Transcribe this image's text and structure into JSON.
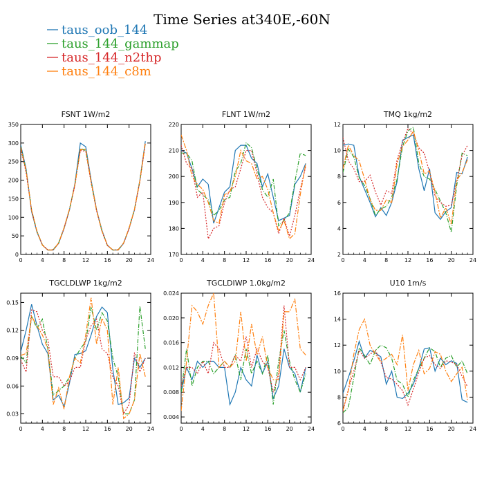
{
  "title": "Time Series at340E,-60N",
  "legend": [
    {
      "name": "taus_oob_144",
      "color": "#1f77b4"
    },
    {
      "name": "taus_144_gammap",
      "color": "#2ca02c"
    },
    {
      "name": "taus_144_n2thp",
      "color": "#d62728"
    },
    {
      "name": "taus_144_c8m",
      "color": "#ff7f0e"
    }
  ],
  "chart_data": [
    {
      "type": "line",
      "title": "FSNT 1W/m2",
      "xlim": [
        0,
        24
      ],
      "ylim": [
        0,
        350
      ],
      "xticks": [
        0,
        4,
        8,
        12,
        16,
        20,
        24
      ],
      "yticks": [
        0,
        50,
        100,
        150,
        200,
        250,
        300,
        350
      ],
      "ytick_labels": [
        "0",
        "50",
        "100",
        "150",
        "200",
        "250",
        "300",
        "350"
      ],
      "x": [
        0,
        1,
        2,
        3,
        4,
        5,
        6,
        7,
        8,
        9,
        10,
        11,
        12,
        13,
        14,
        15,
        16,
        17,
        18,
        19,
        20,
        21,
        22,
        23
      ],
      "series": [
        {
          "name": "taus_oob_144",
          "values": [
            295,
            230,
            115,
            60,
            25,
            12,
            12,
            30,
            70,
            120,
            190,
            300,
            290,
            200,
            120,
            65,
            25,
            12,
            12,
            30,
            70,
            120,
            200,
            305
          ]
        },
        {
          "name": "taus_144_gammap",
          "values": [
            290,
            225,
            120,
            62,
            26,
            12,
            13,
            31,
            72,
            122,
            188,
            285,
            280,
            195,
            118,
            63,
            24,
            12,
            13,
            31,
            71,
            122,
            198,
            300
          ]
        },
        {
          "name": "taus_144_n2thp",
          "values": [
            285,
            220,
            118,
            61,
            26,
            12,
            13,
            30,
            71,
            121,
            186,
            280,
            278,
            193,
            117,
            62,
            24,
            12,
            13,
            30,
            70,
            120,
            196,
            298
          ]
        },
        {
          "name": "taus_144_c8m",
          "values": [
            288,
            226,
            119,
            62,
            25,
            12,
            12,
            31,
            72,
            122,
            187,
            282,
            283,
            196,
            119,
            63,
            25,
            12,
            12,
            31,
            71,
            121,
            199,
            302
          ]
        }
      ]
    },
    {
      "type": "line",
      "title": "FLNT 1W/m2",
      "xlim": [
        0,
        24
      ],
      "ylim": [
        170,
        220
      ],
      "xticks": [
        0,
        4,
        8,
        12,
        16,
        20,
        24
      ],
      "yticks": [
        170,
        180,
        190,
        200,
        210,
        220
      ],
      "ytick_labels": [
        "170",
        "180",
        "190",
        "200",
        "210",
        "220"
      ],
      "x": [
        0,
        1,
        2,
        3,
        4,
        5,
        6,
        7,
        8,
        9,
        10,
        11,
        12,
        13,
        14,
        15,
        16,
        17,
        18,
        19,
        20,
        21,
        22,
        23
      ],
      "series": [
        {
          "name": "taus_oob_144",
          "values": [
            210,
            209,
            203,
            196,
            199,
            197,
            182,
            188,
            194,
            196,
            210,
            212,
            212,
            207,
            205,
            196,
            201,
            192,
            183,
            184,
            185,
            197,
            200,
            205
          ]
        },
        {
          "name": "taus_144_gammap",
          "values": [
            209,
            209,
            206,
            195,
            193,
            191,
            185,
            187,
            191,
            192,
            202,
            205,
            213,
            211,
            203,
            195,
            192,
            199,
            181,
            183,
            186,
            198,
            209,
            208
          ]
        },
        {
          "name": "taus_144_n2thp",
          "values": [
            212,
            205,
            203,
            192,
            194,
            176,
            180,
            181,
            190,
            195,
            196,
            203,
            210,
            210,
            201,
            192,
            188,
            186,
            178,
            184,
            177,
            185,
            195,
            204
          ]
        },
        {
          "name": "taus_144_c8m",
          "values": [
            216,
            210,
            200,
            197,
            195,
            190,
            183,
            182,
            193,
            194,
            200,
            210,
            206,
            205,
            199,
            200,
            195,
            186,
            179,
            183,
            176,
            178,
            193,
            205
          ]
        }
      ]
    },
    {
      "type": "line",
      "title": "TMQ 1kg/m2",
      "xlim": [
        0,
        24
      ],
      "ylim": [
        2,
        12
      ],
      "xticks": [
        0,
        4,
        8,
        12,
        16,
        20,
        24
      ],
      "yticks": [
        2,
        4,
        6,
        8,
        10,
        12
      ],
      "ytick_labels": [
        "2",
        "4",
        "6",
        "8",
        "10",
        "12"
      ],
      "x": [
        0,
        1,
        2,
        3,
        4,
        5,
        6,
        7,
        8,
        9,
        10,
        11,
        12,
        13,
        14,
        15,
        16,
        17,
        18,
        19,
        20,
        21,
        22,
        23
      ],
      "series": [
        {
          "name": "taus_oob_144",
          "values": [
            10.4,
            10.5,
            10.4,
            8.0,
            7.0,
            6.0,
            4.9,
            5.6,
            5.0,
            6.0,
            7.6,
            10.8,
            11.0,
            11.2,
            8.6,
            6.9,
            8.6,
            5.2,
            4.7,
            5.3,
            5.6,
            8.3,
            8.2,
            9.5
          ]
        },
        {
          "name": "taus_144_gammap",
          "values": [
            8.3,
            10.1,
            9.5,
            7.9,
            7.3,
            6.3,
            5.0,
            5.5,
            5.7,
            6.4,
            7.8,
            10.3,
            11.5,
            11.8,
            9.0,
            8.0,
            7.8,
            7.0,
            6.1,
            5.2,
            3.7,
            7.3,
            9.8,
            9.6
          ]
        },
        {
          "name": "taus_144_n2thp",
          "values": [
            11.0,
            9.2,
            8.6,
            7.6,
            7.6,
            8.1,
            6.8,
            5.8,
            6.9,
            6.7,
            9.3,
            10.6,
            11.7,
            11.3,
            10.2,
            9.8,
            8.3,
            6.5,
            6.0,
            5.7,
            5.8,
            7.6,
            9.6,
            10.4
          ]
        },
        {
          "name": "taus_144_c8m",
          "values": [
            8.6,
            10.4,
            9.6,
            9.2,
            7.8,
            6.2,
            5.4,
            5.4,
            6.2,
            6.0,
            9.0,
            10.3,
            10.8,
            11.5,
            10.0,
            8.2,
            8.4,
            6.8,
            4.8,
            5.6,
            4.3,
            7.7,
            8.3,
            9.3
          ]
        }
      ]
    },
    {
      "type": "line",
      "title": "TGCLDLWP 1kg/m2",
      "xlim": [
        0,
        24
      ],
      "ylim": [
        0.02,
        0.16
      ],
      "xticks": [
        0,
        4,
        8,
        12,
        16,
        20,
        24
      ],
      "yticks": [
        0.03,
        0.06,
        0.09,
        0.12,
        0.15
      ],
      "ytick_labels": [
        "0.03",
        "0.06",
        "0.09",
        "0.12",
        "0.15"
      ],
      "x": [
        0,
        1,
        2,
        3,
        4,
        5,
        6,
        7,
        8,
        9,
        10,
        11,
        12,
        13,
        14,
        15,
        16,
        17,
        18,
        19,
        20,
        21,
        22,
        23
      ],
      "series": [
        {
          "name": "taus_oob_144",
          "values": [
            0.097,
            0.12,
            0.148,
            0.125,
            0.105,
            0.095,
            0.045,
            0.05,
            0.038,
            0.063,
            0.094,
            0.095,
            0.098,
            0.115,
            0.135,
            0.145,
            0.139,
            0.078,
            0.04,
            0.042,
            0.047,
            0.09,
            0.08,
            0.09
          ]
        },
        {
          "name": "taus_144_gammap",
          "values": [
            0.092,
            0.085,
            0.135,
            0.122,
            0.132,
            0.1,
            0.05,
            0.055,
            0.06,
            0.07,
            0.09,
            0.1,
            0.108,
            0.145,
            0.12,
            0.139,
            0.13,
            0.09,
            0.07,
            0.03,
            0.03,
            0.045,
            0.146,
            0.1
          ]
        },
        {
          "name": "taus_144_n2thp",
          "values": [
            0.088,
            0.075,
            0.142,
            0.14,
            0.12,
            0.11,
            0.07,
            0.07,
            0.06,
            0.065,
            0.08,
            0.08,
            0.11,
            0.125,
            0.132,
            0.1,
            0.095,
            0.07,
            0.06,
            0.03,
            0.04,
            0.096,
            0.075,
            0.09
          ]
        },
        {
          "name": "taus_144_c8m",
          "values": [
            0.093,
            0.095,
            0.135,
            0.125,
            0.115,
            0.1,
            0.04,
            0.058,
            0.035,
            0.07,
            0.09,
            0.085,
            0.115,
            0.155,
            0.105,
            0.133,
            0.12,
            0.04,
            0.08,
            0.025,
            0.03,
            0.045,
            0.095,
            0.07
          ]
        }
      ]
    },
    {
      "type": "line",
      "title": "TGCLDIWP 1.0kg/m2",
      "xlim": [
        0,
        24
      ],
      "ylim": [
        0.003,
        0.024
      ],
      "xticks": [
        0,
        4,
        8,
        12,
        16,
        20,
        24
      ],
      "yticks": [
        0.004,
        0.008,
        0.012,
        0.016,
        0.02,
        0.024
      ],
      "ytick_labels": [
        "0.004",
        "0.008",
        "0.012",
        "0.016",
        "0.020",
        "0.024"
      ],
      "x": [
        0,
        1,
        2,
        3,
        4,
        5,
        6,
        7,
        8,
        9,
        10,
        11,
        12,
        13,
        14,
        15,
        16,
        17,
        18,
        19,
        20,
        21,
        22,
        23
      ],
      "series": [
        {
          "name": "taus_oob_144",
          "values": [
            0.008,
            0.012,
            0.01,
            0.013,
            0.012,
            0.013,
            0.013,
            0.012,
            0.012,
            0.006,
            0.008,
            0.012,
            0.01,
            0.009,
            0.014,
            0.011,
            0.013,
            0.007,
            0.009,
            0.015,
            0.012,
            0.011,
            0.008,
            0.012
          ]
        },
        {
          "name": "taus_144_gammap",
          "values": [
            0.008,
            0.015,
            0.009,
            0.012,
            0.013,
            0.013,
            0.011,
            0.012,
            0.013,
            0.012,
            0.014,
            0.01,
            0.015,
            0.011,
            0.013,
            0.011,
            0.014,
            0.006,
            0.013,
            0.018,
            0.013,
            0.01,
            0.008,
            0.011
          ]
        },
        {
          "name": "taus_144_n2thp",
          "values": [
            0.009,
            0.012,
            0.012,
            0.011,
            0.013,
            0.011,
            0.016,
            0.015,
            0.012,
            0.012,
            0.014,
            0.013,
            0.017,
            0.012,
            0.015,
            0.013,
            0.012,
            0.008,
            0.011,
            0.022,
            0.012,
            0.012,
            0.01,
            0.012
          ]
        },
        {
          "name": "taus_144_c8m",
          "values": [
            0.005,
            0.013,
            0.022,
            0.021,
            0.019,
            0.022,
            0.024,
            0.012,
            0.013,
            0.012,
            0.013,
            0.021,
            0.013,
            0.019,
            0.014,
            0.017,
            0.012,
            0.01,
            0.01,
            0.021,
            0.021,
            0.023,
            0.015,
            0.014
          ]
        }
      ]
    },
    {
      "type": "line",
      "title": "U10 1m/s",
      "xlim": [
        0,
        24
      ],
      "ylim": [
        6,
        16
      ],
      "xticks": [
        0,
        4,
        8,
        12,
        16,
        20,
        24
      ],
      "yticks": [
        6,
        8,
        10,
        12,
        14,
        16
      ],
      "ytick_labels": [
        "6",
        "8",
        "10",
        "12",
        "14",
        "16"
      ],
      "x": [
        0,
        1,
        2,
        3,
        4,
        5,
        6,
        7,
        8,
        9,
        10,
        11,
        12,
        13,
        14,
        15,
        16,
        17,
        18,
        19,
        20,
        21,
        22,
        23
      ],
      "series": [
        {
          "name": "taus_oob_144",
          "values": [
            8.3,
            9.5,
            10.8,
            12.3,
            11.0,
            11.6,
            11.4,
            11.1,
            9.0,
            10.0,
            8.0,
            7.9,
            8.3,
            9.0,
            10.2,
            11.7,
            11.8,
            10.0,
            11.0,
            10.5,
            10.8,
            10.6,
            7.8,
            7.6
          ]
        },
        {
          "name": "taus_144_gammap",
          "values": [
            6.8,
            7.2,
            9.5,
            11.8,
            11.2,
            10.5,
            11.6,
            12.0,
            11.8,
            11.0,
            9.3,
            9.0,
            8.0,
            9.3,
            10.2,
            11.0,
            11.8,
            11.5,
            10.3,
            11.0,
            11.2,
            10.3,
            10.8,
            9.8
          ]
        },
        {
          "name": "taus_144_n2thp",
          "values": [
            6.9,
            8.6,
            10.0,
            11.6,
            11.0,
            11.3,
            11.6,
            10.7,
            9.5,
            9.4,
            9.0,
            8.5,
            7.4,
            8.6,
            9.9,
            11.0,
            11.2,
            10.5,
            10.2,
            10.8,
            10.7,
            10.5,
            9.6,
            8.8
          ]
        },
        {
          "name": "taus_144_c8m",
          "values": [
            7.0,
            8.5,
            11.3,
            13.2,
            14.0,
            12.0,
            11.3,
            10.7,
            11.0,
            11.3,
            10.5,
            12.8,
            8.5,
            10.5,
            11.6,
            9.8,
            10.2,
            11.5,
            11.3,
            10.0,
            9.2,
            9.8,
            10.3,
            7.8
          ]
        }
      ]
    }
  ]
}
